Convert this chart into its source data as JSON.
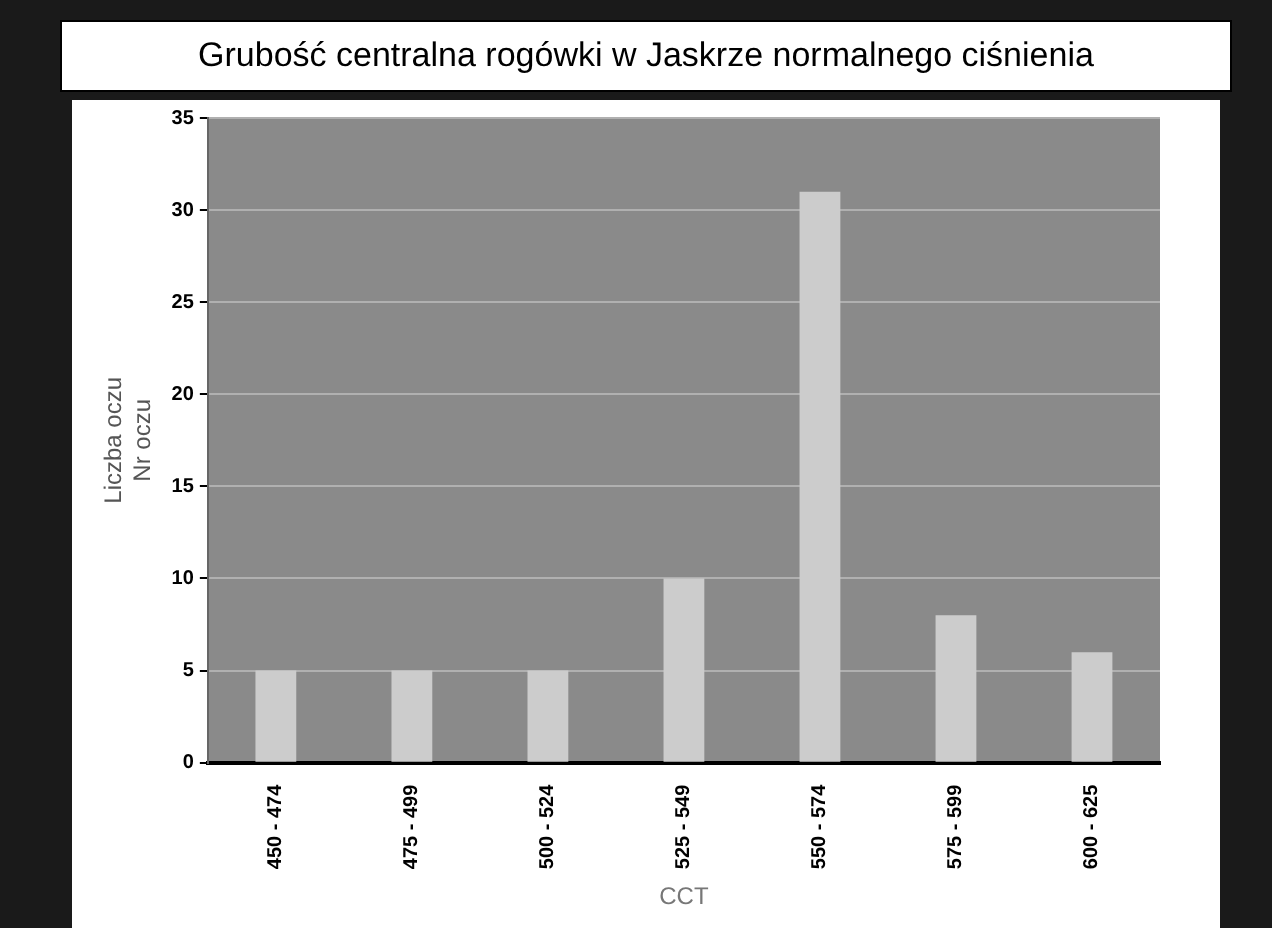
{
  "chart_data": {
    "type": "bar",
    "title": "Grubość centralna rogówki w Jaskrze normalnego ciśnienia",
    "xlabel": "CCT",
    "ylabel": "Liczba oczu\nNr oczu",
    "categories": [
      "450 - 474",
      "475 - 499",
      "500 - 524",
      "525 - 549",
      "550 - 574",
      "575 - 599",
      "600 - 625"
    ],
    "values": [
      5,
      5,
      5,
      10,
      31,
      8,
      6
    ],
    "color": "#cccccc",
    "ylim": [
      0,
      35
    ],
    "yticks": [
      0,
      5,
      10,
      15,
      20,
      25,
      30,
      35
    ],
    "grid": "y"
  }
}
